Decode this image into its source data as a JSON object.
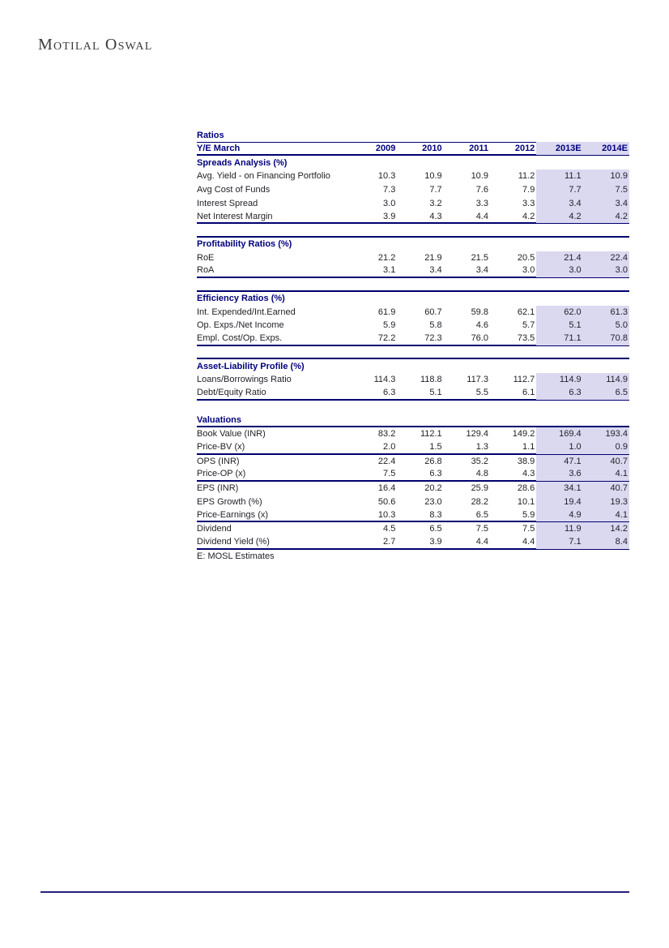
{
  "logo": {
    "text": "Motilal Oswal"
  },
  "colors": {
    "navy_header_text": "#00007D",
    "body_text": "#1F1F26",
    "border_navy": "#000070",
    "estimate_highlight": "#DBD9F0",
    "footer_rule": "#26217A",
    "logo_text": "#3A3A3C"
  },
  "table": {
    "title": "Ratios",
    "header_label": "Y/E March",
    "columns": [
      "2009",
      "2010",
      "2011",
      "2012",
      "2013E",
      "2014E"
    ],
    "estimate_columns": [
      "2013E",
      "2014E"
    ],
    "footnote": "E: MOSL Estimates",
    "layout": {
      "estimate_start_index": 4
    },
    "sections": [
      {
        "title": "Spreads Analysis (%)",
        "spacer_before": false,
        "spacer_highlighted": false,
        "spacer_border": false,
        "title_underline": false,
        "title_highlighted": true,
        "groups": [
          [
            {
              "label": "Avg. Yield - on Financing Portfolio",
              "values": [
                "10.3",
                "10.9",
                "10.9",
                "11.2",
                "11.1",
                "10.9"
              ]
            },
            {
              "label": "Avg Cost of Funds",
              "values": [
                "7.3",
                "7.7",
                "7.6",
                "7.9",
                "7.7",
                "7.5"
              ]
            },
            {
              "label": "Interest Spread",
              "values": [
                "3.0",
                "3.2",
                "3.3",
                "3.3",
                "3.4",
                "3.4"
              ]
            },
            {
              "label": "Net Interest Margin",
              "values": [
                "3.9",
                "4.3",
                "4.4",
                "4.2",
                "4.2",
                "4.2"
              ]
            }
          ]
        ]
      },
      {
        "title": "Profitability Ratios (%)",
        "spacer_before": true,
        "spacer_highlighted": true,
        "spacer_border": true,
        "title_underline": false,
        "title_highlighted": true,
        "groups": [
          [
            {
              "label": "RoE",
              "values": [
                "21.2",
                "21.9",
                "21.5",
                "20.5",
                "21.4",
                "22.4"
              ]
            },
            {
              "label": "RoA",
              "values": [
                "3.1",
                "3.4",
                "3.4",
                "3.0",
                "3.0",
                "3.0"
              ]
            }
          ]
        ]
      },
      {
        "title": "Efficiency Ratios (%)",
        "spacer_before": true,
        "spacer_highlighted": true,
        "spacer_border": true,
        "title_underline": false,
        "title_highlighted": true,
        "groups": [
          [
            {
              "label": "Int. Expended/Int.Earned",
              "values": [
                "61.9",
                "60.7",
                "59.8",
                "62.1",
                "62.0",
                "61.3"
              ]
            },
            {
              "label": "Op. Exps./Net Income",
              "values": [
                "5.9",
                "5.8",
                "4.6",
                "5.7",
                "5.1",
                "5.0"
              ]
            },
            {
              "label": "Empl. Cost/Op. Exps.",
              "values": [
                "72.2",
                "72.3",
                "76.0",
                "73.5",
                "71.1",
                "70.8"
              ]
            }
          ]
        ]
      },
      {
        "title": "Asset-Liability Profile (%)",
        "spacer_before": true,
        "spacer_highlighted": true,
        "spacer_border": true,
        "title_underline": false,
        "title_highlighted": true,
        "groups": [
          [
            {
              "label": "Loans/Borrowings Ratio",
              "values": [
                "114.3",
                "118.8",
                "117.3",
                "112.7",
                "114.9",
                "114.9"
              ]
            },
            {
              "label": "Debt/Equity Ratio",
              "values": [
                "6.3",
                "5.1",
                "5.5",
                "6.1",
                "6.3",
                "6.5"
              ]
            }
          ]
        ]
      },
      {
        "title": "Valuations",
        "spacer_before": true,
        "spacer_highlighted": false,
        "spacer_border": false,
        "title_underline": true,
        "title_highlighted": false,
        "groups": [
          [
            {
              "label": "Book Value (INR)",
              "values": [
                "83.2",
                "112.1",
                "129.4",
                "149.2",
                "169.4",
                "193.4"
              ]
            },
            {
              "label": "Price-BV (x)",
              "values": [
                "2.0",
                "1.5",
                "1.3",
                "1.1",
                "1.0",
                "0.9"
              ]
            }
          ],
          [
            {
              "label": "OPS (INR)",
              "values": [
                "22.4",
                "26.8",
                "35.2",
                "38.9",
                "47.1",
                "40.7"
              ]
            },
            {
              "label": "Price-OP (x)",
              "values": [
                "7.5",
                "6.3",
                "4.8",
                "4.3",
                "3.6",
                "4.1"
              ]
            }
          ],
          [
            {
              "label": "EPS (INR)",
              "values": [
                "16.4",
                "20.2",
                "25.9",
                "28.6",
                "34.1",
                "40.7"
              ]
            },
            {
              "label": "EPS Growth (%)",
              "values": [
                "50.6",
                "23.0",
                "28.2",
                "10.1",
                "19.4",
                "19.3"
              ]
            },
            {
              "label": "Price-Earnings (x)",
              "values": [
                "10.3",
                "8.3",
                "6.5",
                "5.9",
                "4.9",
                "4.1"
              ]
            }
          ],
          [
            {
              "label": "Dividend",
              "values": [
                "4.5",
                "6.5",
                "7.5",
                "7.5",
                "11.9",
                "14.2"
              ]
            },
            {
              "label": "Dividend Yield (%)",
              "values": [
                "2.7",
                "3.9",
                "4.4",
                "4.4",
                "7.1",
                "8.4"
              ]
            }
          ]
        ]
      }
    ]
  }
}
